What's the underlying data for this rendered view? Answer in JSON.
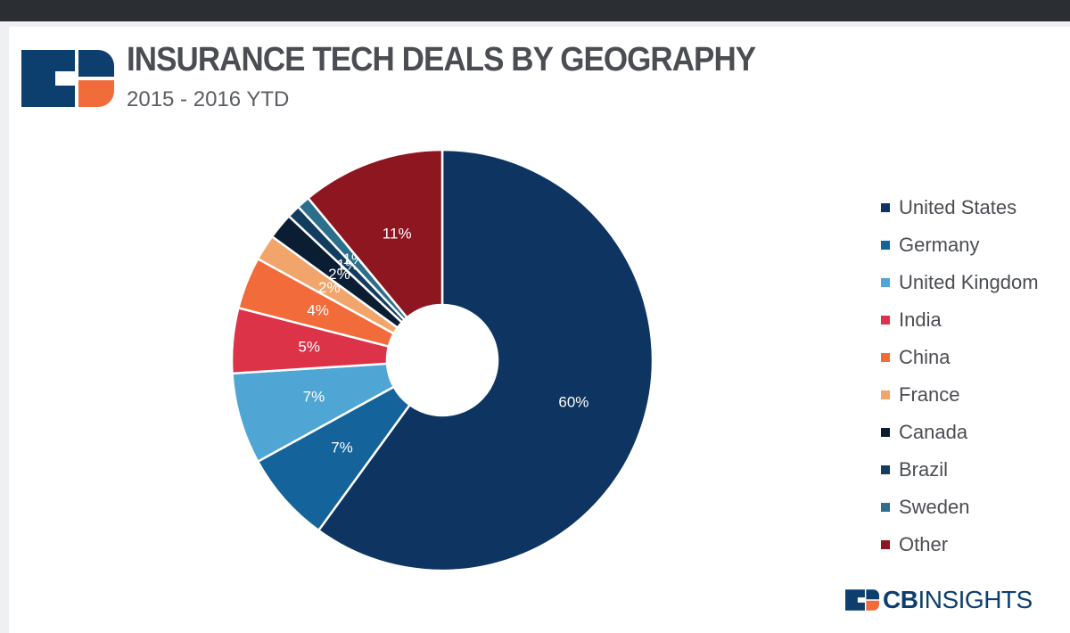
{
  "header": {
    "title": "INSURANCE TECH DEALS BY GEOGRAPHY",
    "subtitle": "2015 - 2016 YTD"
  },
  "brand": {
    "logo_icon": "cb-insights-logo-icon",
    "text_bold": "CB",
    "text_light": "INSIGHTS",
    "colors": {
      "navy": "#0d3f6e",
      "orange": "#f26b3a"
    }
  },
  "chart_data": {
    "type": "pie",
    "donut": true,
    "start": "12 o'clock, clockwise",
    "legend_position": "right",
    "slices": [
      {
        "name": "United States",
        "value": 60,
        "label": "60%",
        "color": "#0e3562"
      },
      {
        "name": "Germany",
        "value": 7,
        "label": "7%",
        "color": "#14649b"
      },
      {
        "name": "United Kingdom",
        "value": 7,
        "label": "7%",
        "color": "#4fa5d3"
      },
      {
        "name": "India",
        "value": 5,
        "label": "5%",
        "color": "#dc3348"
      },
      {
        "name": "China",
        "value": 4,
        "label": "4%",
        "color": "#f26b3a"
      },
      {
        "name": "France",
        "value": 2,
        "label": "2%",
        "color": "#f2a56b"
      },
      {
        "name": "Canada",
        "value": 2,
        "label": "2%",
        "color": "#0a1d33"
      },
      {
        "name": "Brazil",
        "value": 1,
        "label": "1%",
        "color": "#133c61"
      },
      {
        "name": "Sweden",
        "value": 1,
        "label": "1%",
        "color": "#2b6f8c"
      },
      {
        "name": "Other",
        "value": 11,
        "label": "11%",
        "color": "#8d1621"
      }
    ]
  }
}
